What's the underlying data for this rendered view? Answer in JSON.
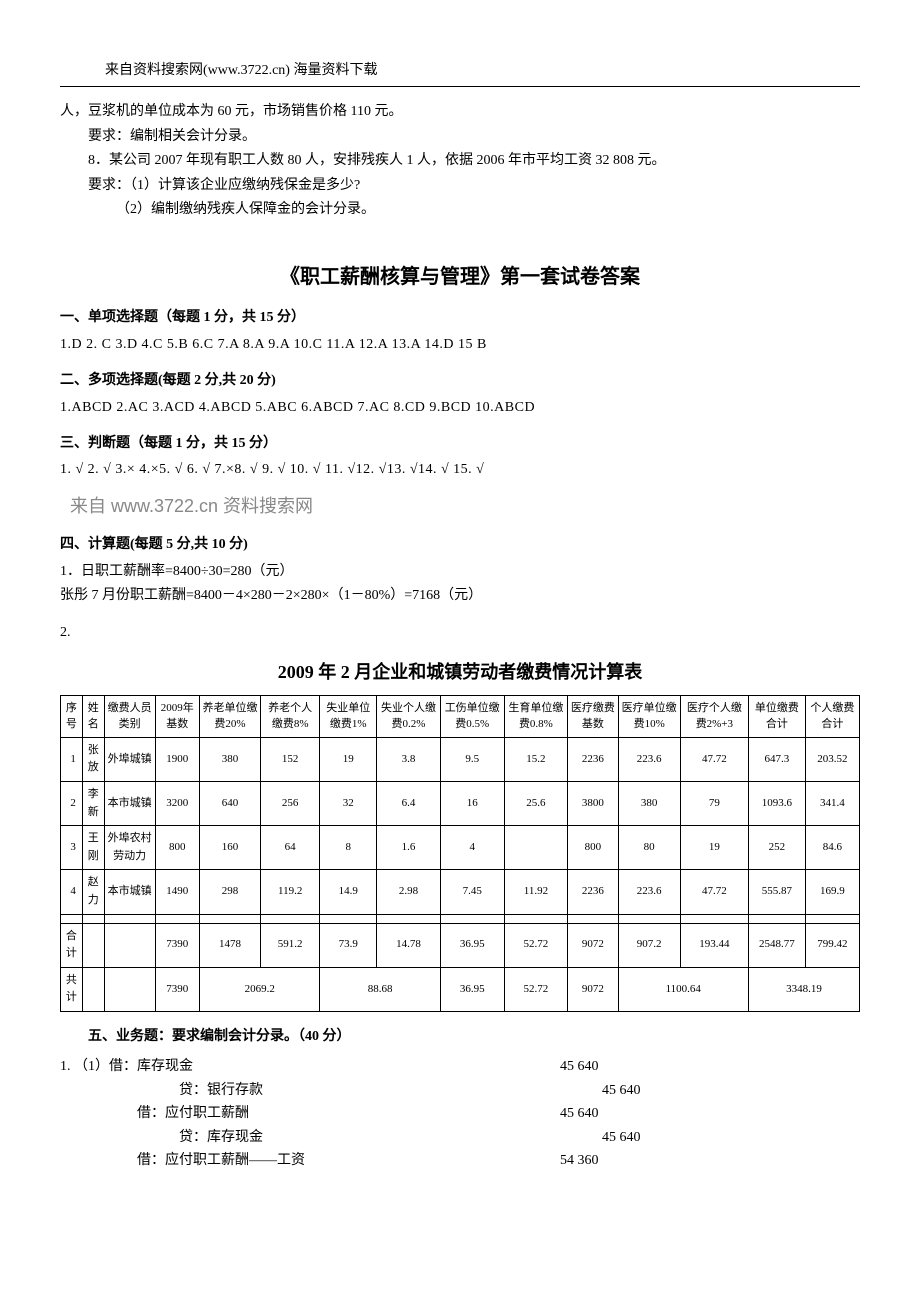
{
  "header": {
    "source": "来自资料搜索网(www.3722.cn) 海量资料下载"
  },
  "intro": {
    "line1": "人，豆浆机的单位成本为 60 元，市场销售价格 110 元。",
    "req1": "要求：编制相关会计分录。",
    "q8": "8．某公司 2007 年现有职工人数 80 人，安排残疾人 1 人，依据 2006 年市平均工资 32 808 元。",
    "req2a": "要求：（1）计算该企业应缴纳残保金是多少?",
    "req2b": "（2）编制缴纳残疾人保障金的会计分录。"
  },
  "answers": {
    "main_title": "《职工薪酬核算与管理》第一套试卷答案",
    "s1_title": "一、单项选择题（每题 1 分，共 15 分）",
    "s1_line": "1.D   2. C    3.D  4.C    5.B   6.C   7.A   8.A   9.A   10.C  11.A  12.A  13.A  14.D  15 B",
    "s2_title": "二、多项选择题(每题 2 分,共 20 分)",
    "s2_line": "1.ABCD    2.AC      3.ACD   4.ABCD    5.ABC   6.ABCD  7.AC    8.CD   9.BCD   10.ABCD",
    "s3_title": "三、判断题（每题 1 分，共 15 分）",
    "s3_line": "1. √  2.  √  3.× 4.×5.  √ 6.  √ 7.×8.  √ 9.  √ 10.  √ 11.  √12.  √13.  √14.  √ 15. √",
    "watermark": "来自  www.3722.cn 资料搜索网",
    "s4_title": "四、计算题(每题 5 分,共 10 分)",
    "s4_q1a": "1．日职工薪酬率=8400÷30=280（元）",
    "s4_q1b": "张彤 7 月份职工薪酬=8400－4×280－2×280×（1－80%）=7168（元）",
    "s4_q2": "2."
  },
  "table": {
    "title": "2009 年 2 月企业和城镇劳动者缴费情况计算表",
    "headers": [
      "序号",
      "姓名",
      "缴费人员类别",
      "2009年基数",
      "养老单位缴费20%",
      "养老个人缴费8%",
      "失业单位缴费1%",
      "失业个人缴费0.2%",
      "工伤单位缴费0.5%",
      "生育单位缴费0.8%",
      "医疗缴费基数",
      "医疗单位缴费10%",
      "医疗个人缴费2%+3",
      "单位缴费合计",
      "个人缴费合计"
    ],
    "rows": [
      [
        "1",
        "张放",
        "外埠城镇",
        "1900",
        "380",
        "152",
        "19",
        "3.8",
        "9.5",
        "15.2",
        "2236",
        "223.6",
        "47.72",
        "647.3",
        "203.52"
      ],
      [
        "2",
        "李新",
        "本市城镇",
        "3200",
        "640",
        "256",
        "32",
        "6.4",
        "16",
        "25.6",
        "3800",
        "380",
        "79",
        "1093.6",
        "341.4"
      ],
      [
        "3",
        "王刚",
        "外埠农村劳动力",
        "800",
        "160",
        "64",
        "8",
        "1.6",
        "4",
        "",
        "800",
        "80",
        "19",
        "252",
        "84.6"
      ],
      [
        "4",
        "赵力",
        "本市城镇",
        "1490",
        "298",
        "119.2",
        "14.9",
        "2.98",
        "7.45",
        "11.92",
        "2236",
        "223.6",
        "47.72",
        "555.87",
        "169.9"
      ]
    ],
    "blank_row": [
      "",
      "",
      "",
      "",
      "",
      "",
      "",
      "",
      "",
      "",
      "",
      "",
      "",
      "",
      ""
    ],
    "sum_row": [
      "合计",
      "",
      "",
      "7390",
      "1478",
      "591.2",
      "73.9",
      "14.78",
      "36.95",
      "52.72",
      "9072",
      "907.2",
      "193.44",
      "2548.77",
      "799.42"
    ],
    "total_label": "共计",
    "total_cells": [
      "7390",
      "2069.2",
      "88.68",
      "36.95",
      "52.72",
      "9072",
      "1100.64",
      "3348.19"
    ]
  },
  "section5": {
    "title": "五、业务题：要求编制会计分录。（40 分）",
    "entries": [
      {
        "label": "1.  （1）借：库存现金",
        "amount": "45 640",
        "lpad": "pad-0",
        "apad": ""
      },
      {
        "label": "贷：银行存款",
        "amount": "45 640",
        "lpad": "pad-3",
        "apad": "amt-pad-1"
      },
      {
        "label": "借：应付职工薪酬",
        "amount": "45 640",
        "lpad": "pad-2",
        "apad": ""
      },
      {
        "label": "贷：库存现金",
        "amount": "45 640",
        "lpad": "pad-3",
        "apad": "amt-pad-1"
      },
      {
        "label": "借：应付职工薪酬——工资",
        "amount": "54 360",
        "lpad": "pad-2",
        "apad": ""
      }
    ]
  }
}
